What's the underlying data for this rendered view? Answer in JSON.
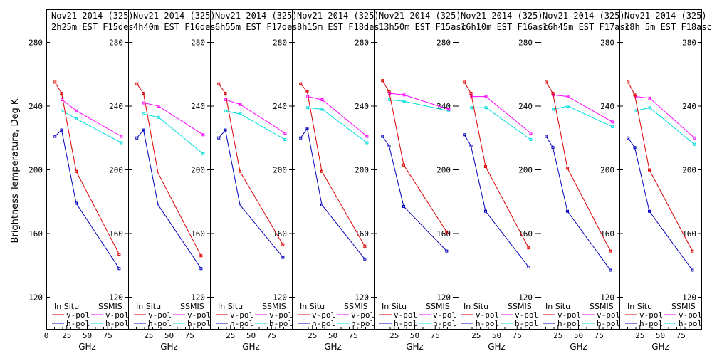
{
  "chart_data": {
    "type": "line",
    "ylabel": "Brightness Temperature, Deg K",
    "xlabel": "GHz",
    "xlim": [
      0,
      100
    ],
    "ylim": [
      110,
      290
    ],
    "yticks": [
      120,
      160,
      200,
      240,
      280
    ],
    "xticks": [
      0,
      25,
      50,
      75
    ],
    "x_first": [
      0,
      25,
      50,
      75
    ],
    "legend": {
      "in_situ_header": "In Situ",
      "ssmis_header": "SSMIS",
      "vpol": "v-pol",
      "hpol": "h-pol"
    },
    "colors": {
      "insitu_v": "#dd0000",
      "insitu_h": "#0000bb",
      "ssmis_v": "#ff00ff",
      "ssmis_h": "#00dddd"
    },
    "freqs": [
      10.65,
      18.7,
      36.5,
      89.0
    ],
    "ssmis_freqs": [
      19.35,
      37.0,
      91.65
    ],
    "panels": [
      {
        "line1": "Nov21 2014 (325)",
        "line2": "2h25m EST F15des",
        "insitu_v": [
          255,
          248,
          199,
          147
        ],
        "insitu_h": [
          221,
          225,
          179,
          138
        ],
        "ssmis_v": [
          244,
          237,
          221
        ],
        "ssmis_h": [
          237,
          232,
          217
        ]
      },
      {
        "line1": "Nov21 2014 (325)",
        "line2": "4h40m EST F16des",
        "insitu_v": [
          254,
          248,
          198,
          146
        ],
        "insitu_h": [
          220,
          225,
          178,
          138
        ],
        "ssmis_v": [
          242,
          240,
          222
        ],
        "ssmis_h": [
          235,
          233,
          210
        ]
      },
      {
        "line1": "Nov21 2014 (325)",
        "line2": "6h55m EST F17des",
        "insitu_v": [
          254,
          248,
          199,
          153
        ],
        "insitu_h": [
          220,
          225,
          178,
          145
        ],
        "ssmis_v": [
          244,
          241,
          223
        ],
        "ssmis_h": [
          237,
          235,
          219
        ]
      },
      {
        "line1": "Nov21 2014 (325)",
        "line2": "8h15m EST F18des",
        "insitu_v": [
          254,
          249,
          199,
          152
        ],
        "insitu_h": [
          220,
          226,
          178,
          144
        ],
        "ssmis_v": [
          246,
          244,
          221
        ],
        "ssmis_h": [
          239,
          238,
          217
        ]
      },
      {
        "line1": "Nov21 2014 (325)",
        "line2": "13h50m EST F15asc",
        "insitu_v": [
          256,
          249,
          203,
          161
        ],
        "insitu_h": [
          221,
          215,
          177,
          149
        ],
        "ssmis_v": [
          248,
          247,
          238
        ],
        "ssmis_h": [
          244,
          243,
          237
        ]
      },
      {
        "line1": "Nov21 2014 (325)",
        "line2": "16h10m EST F16asc",
        "insitu_v": [
          255,
          248,
          202,
          151
        ],
        "insitu_h": [
          222,
          215,
          174,
          139
        ],
        "ssmis_v": [
          246,
          246,
          223
        ],
        "ssmis_h": [
          239,
          239,
          219
        ]
      },
      {
        "line1": "Nov21 2014 (325)",
        "line2": "16h45m EST F17asc",
        "insitu_v": [
          255,
          248,
          201,
          149
        ],
        "insitu_h": [
          221,
          214,
          174,
          137
        ],
        "ssmis_v": [
          247,
          246,
          230
        ],
        "ssmis_h": [
          238,
          240,
          227
        ]
      },
      {
        "line1": "Nov21 2014 (325)",
        "line2": "18h 5m EST F18asc",
        "insitu_v": [
          255,
          247,
          200,
          149
        ],
        "insitu_h": [
          220,
          214,
          174,
          137
        ],
        "ssmis_v": [
          246,
          245,
          220
        ],
        "ssmis_h": [
          237,
          239,
          216
        ]
      }
    ]
  }
}
